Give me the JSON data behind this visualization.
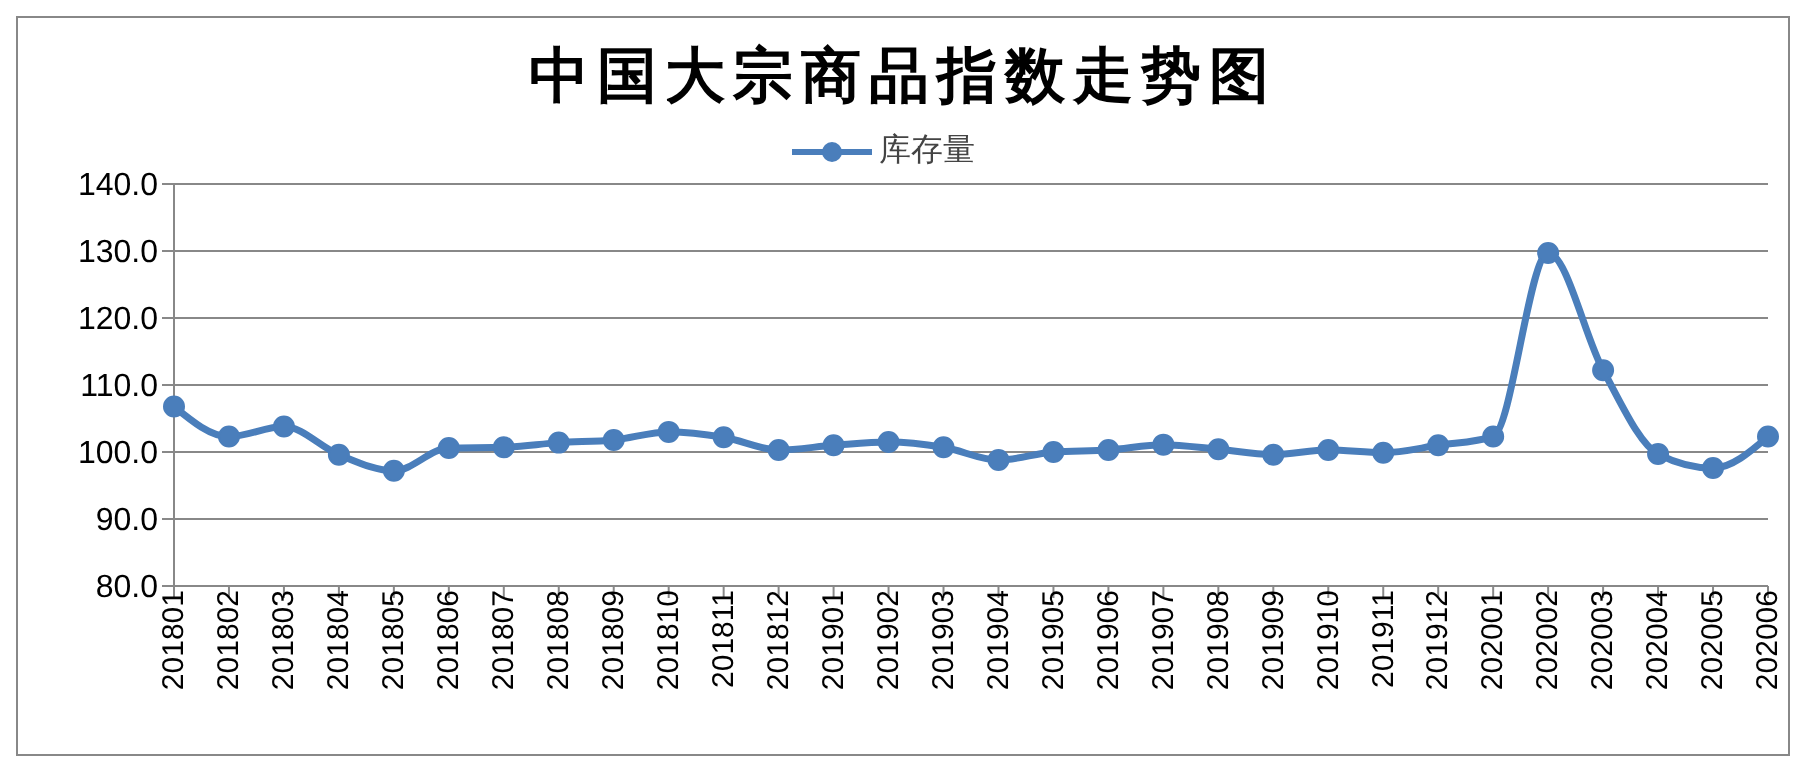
{
  "chart_data": {
    "type": "line",
    "title": "中国大宗商品指数走势图",
    "categories": [
      "201801",
      "201802",
      "201803",
      "201804",
      "201805",
      "201806",
      "201807",
      "201808",
      "201809",
      "201810",
      "201811",
      "201812",
      "201901",
      "201902",
      "201903",
      "201904",
      "201905",
      "201906",
      "201907",
      "201908",
      "201909",
      "201910",
      "201911",
      "201912",
      "202001",
      "202002",
      "202003",
      "202004",
      "202005",
      "202006"
    ],
    "series": [
      {
        "name": "库存量",
        "color": "#4a7ebb",
        "values": [
          106.8,
          102.3,
          103.8,
          99.6,
          97.2,
          100.6,
          100.7,
          101.4,
          101.8,
          103.0,
          102.2,
          100.3,
          101.0,
          101.5,
          100.7,
          98.8,
          100.0,
          100.3,
          101.1,
          100.4,
          99.6,
          100.3,
          99.9,
          101.0,
          102.3,
          129.7,
          112.2,
          99.7,
          97.6,
          102.3
        ]
      }
    ],
    "ylim": [
      80,
      140
    ],
    "yticks": [
      {
        "value": 80,
        "label": "80.0"
      },
      {
        "value": 90,
        "label": "90.0"
      },
      {
        "value": 100,
        "label": "100.0"
      },
      {
        "value": 110,
        "label": "110.0"
      },
      {
        "value": 120,
        "label": "120.0"
      },
      {
        "value": 130,
        "label": "130.0"
      },
      {
        "value": 140,
        "label": "140.0"
      }
    ],
    "grid": "y",
    "legend": "top",
    "marker": "circle",
    "line_style": "solid"
  }
}
